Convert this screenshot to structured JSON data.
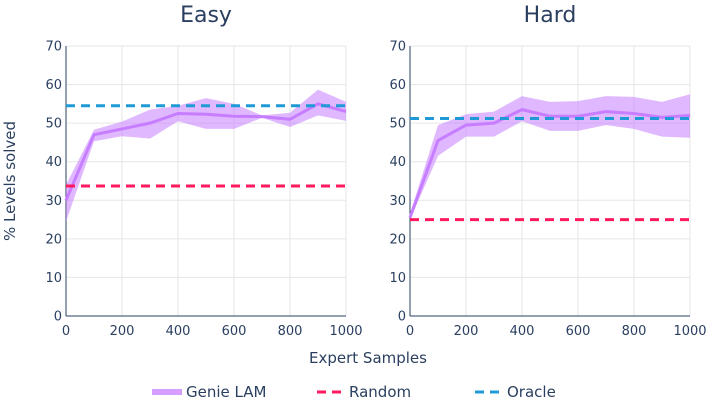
{
  "figure": {
    "xlabel": "Expert Samples",
    "ylabel": "% Levels solved"
  },
  "legend": [
    {
      "name": "Genie LAM",
      "color": "#c77dff",
      "style": "band-line"
    },
    {
      "name": "Random",
      "color": "#ff1a5e",
      "style": "dashed"
    },
    {
      "name": "Oracle",
      "color": "#1f9ad6",
      "style": "dashed"
    }
  ],
  "chart_data": [
    {
      "type": "line",
      "title": "Easy",
      "xlabel": "Expert Samples",
      "ylabel": "% Levels solved",
      "xlim": [
        0,
        1000
      ],
      "ylim": [
        0,
        70
      ],
      "xticks": [
        0,
        200,
        400,
        600,
        800,
        1000
      ],
      "yticks": [
        0,
        10,
        20,
        30,
        40,
        50,
        60,
        70
      ],
      "grid": true,
      "legend_position": "bottom",
      "x": [
        0,
        100,
        200,
        300,
        400,
        500,
        600,
        700,
        800,
        900,
        1000
      ],
      "series": [
        {
          "name": "Genie LAM",
          "values": [
            30,
            47,
            48.5,
            50,
            52.5,
            52.3,
            51.8,
            51.7,
            51,
            55,
            53
          ],
          "lower": [
            24.5,
            45.3,
            46.6,
            46,
            50.5,
            48.5,
            48.5,
            51.4,
            49,
            52,
            50.6
          ],
          "upper": [
            34,
            48.3,
            50.4,
            53.5,
            54.5,
            56.5,
            55,
            52,
            52.7,
            58.7,
            55.5
          ]
        },
        {
          "name": "Random",
          "constant": 33.7
        },
        {
          "name": "Oracle",
          "constant": 54.5
        }
      ]
    },
    {
      "type": "line",
      "title": "Hard",
      "xlabel": "Expert Samples",
      "ylabel": "",
      "xlim": [
        0,
        1000
      ],
      "ylim": [
        0,
        70
      ],
      "xticks": [
        0,
        200,
        400,
        600,
        800,
        1000
      ],
      "yticks": [
        0,
        10,
        20,
        30,
        40,
        50,
        60,
        70
      ],
      "grid": true,
      "legend_position": "bottom",
      "x": [
        0,
        100,
        200,
        300,
        400,
        500,
        600,
        700,
        800,
        900,
        1000
      ],
      "series": [
        {
          "name": "Genie LAM",
          "values": [
            25.5,
            45.5,
            49.5,
            50,
            53.5,
            51.8,
            51.8,
            53,
            52.5,
            51.5,
            52
          ],
          "lower": [
            25,
            41.5,
            46.5,
            46.5,
            50.5,
            48,
            48,
            49.5,
            48.5,
            46.5,
            46.2
          ],
          "upper": [
            26.5,
            49.5,
            52.3,
            53,
            57,
            55.5,
            55.7,
            57,
            56.8,
            55.5,
            57.5
          ]
        },
        {
          "name": "Random",
          "constant": 25
        },
        {
          "name": "Oracle",
          "constant": 51.2
        }
      ]
    }
  ]
}
